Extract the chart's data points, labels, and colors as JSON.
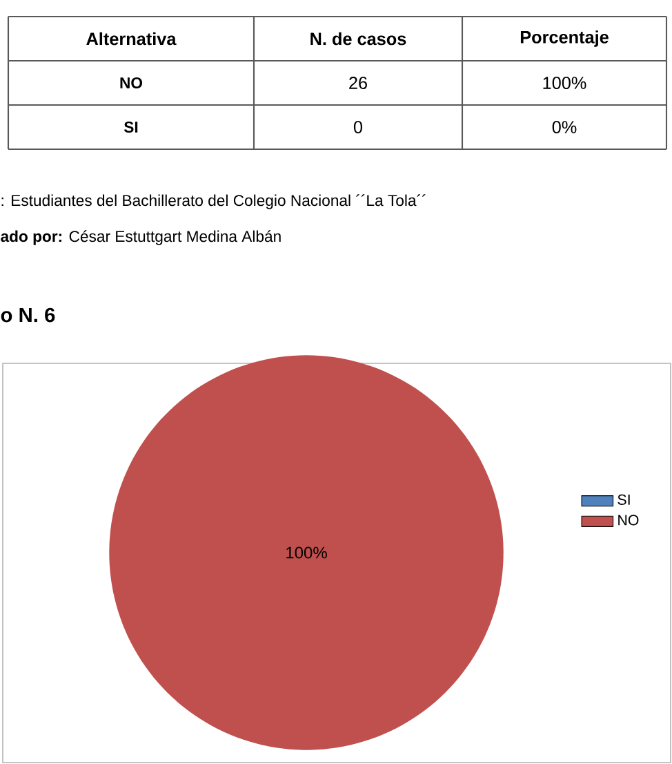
{
  "chart_data": {
    "type": "pie",
    "title": "o N. 6",
    "categories": [
      "SI",
      "NO"
    ],
    "values": [
      0,
      100
    ],
    "colors": [
      "#4f81bd",
      "#c0504d"
    ],
    "value_labels": [
      null,
      "100%"
    ],
    "legend": "right",
    "annotations": [
      "Alternativa",
      "N. de casos",
      "Porcentaje",
      "NO",
      "26",
      "100%",
      "SI",
      "0",
      "0%",
      ": Estudiantes del Bachillerato del Colegio Nacional ´´La Tola´´",
      "**ado por:** César Estuttgart Medina Albán"
    ]
  }
}
